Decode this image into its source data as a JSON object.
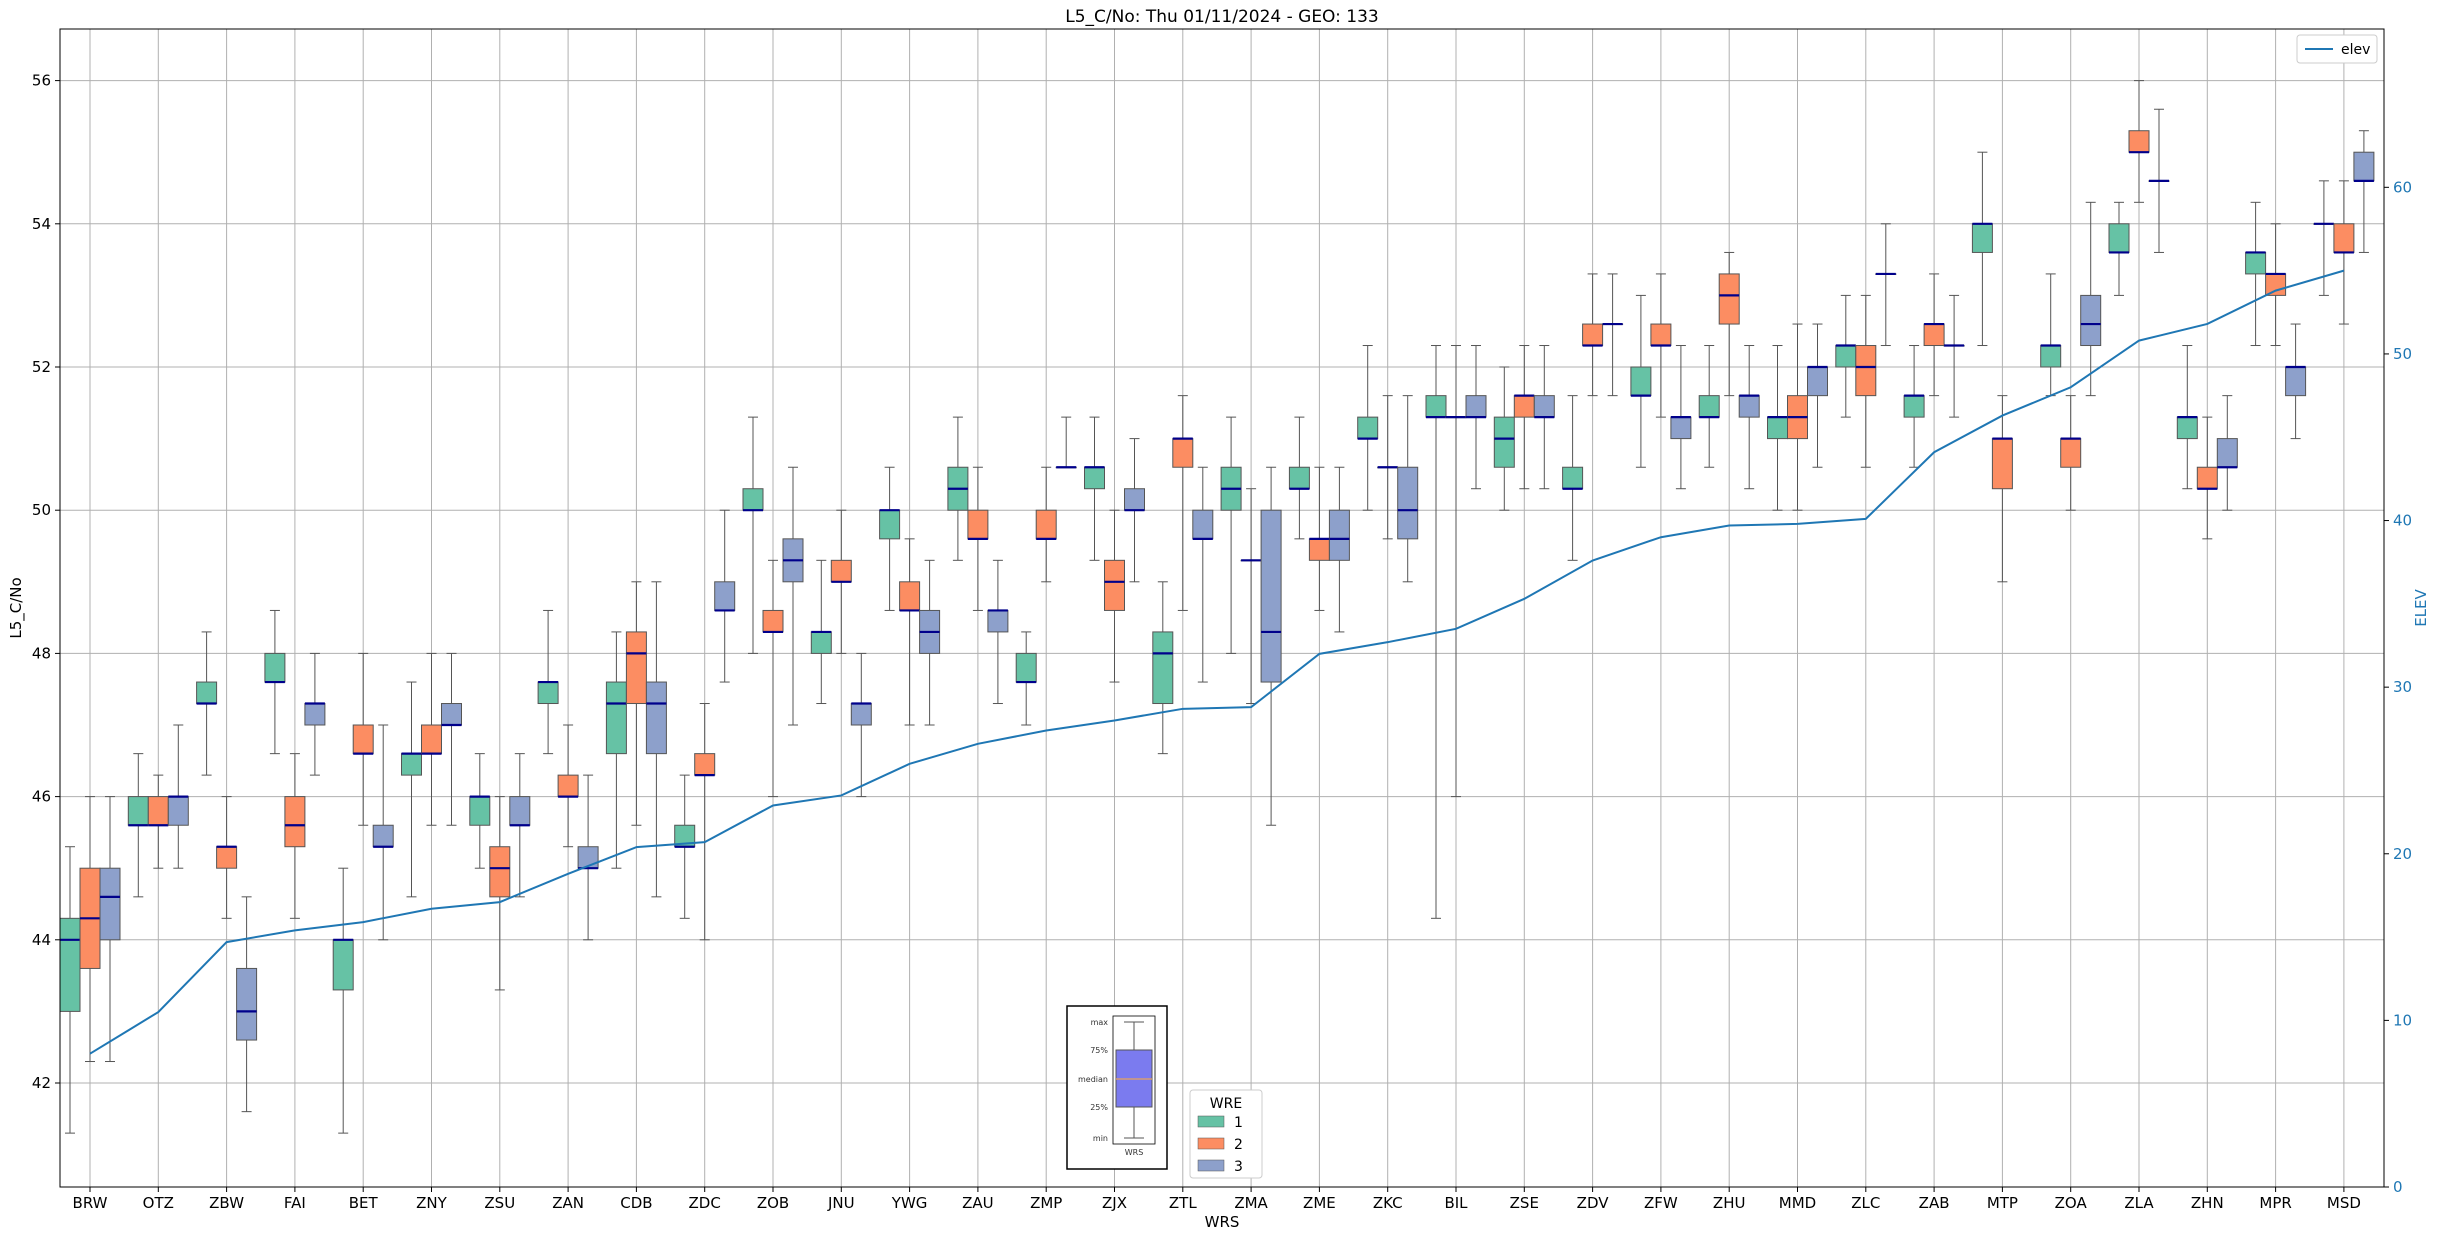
{
  "colors": {
    "wre1": "#66c2a5",
    "wre2": "#fc8d62",
    "wre3": "#8da0cb",
    "median": "#00008b",
    "elev": "#1f77b4",
    "grid": "#b0b0b0",
    "inset_box": "#7b7bef"
  },
  "chart_data": {
    "type": "box",
    "title": "L5_C/No: Thu 01/11/2024 - GEO: 133",
    "xlabel": "WRS",
    "ylabel": "L5_C/No",
    "y2label": "ELEV",
    "ylim": [
      40.6,
      56.8
    ],
    "y2lim": [
      0,
      65
    ],
    "yticks": [
      "42",
      "44",
      "46",
      "48",
      "50",
      "52",
      "54",
      "56"
    ],
    "y2ticks": [
      "0",
      "10",
      "20",
      "30",
      "40",
      "50",
      "60"
    ],
    "grid": true,
    "categories": [
      "BRW",
      "OTZ",
      "ZBW",
      "FAI",
      "BET",
      "ZNY",
      "ZSU",
      "ZAN",
      "CDB",
      "ZDC",
      "ZOB",
      "JNU",
      "YWG",
      "ZAU",
      "ZMP",
      "ZJX",
      "ZTL",
      "ZMA",
      "ZME",
      "ZKC",
      "BIL",
      "ZSE",
      "ZDV",
      "ZFW",
      "ZHU",
      "MMD",
      "ZLC",
      "ZAB",
      "MTP",
      "ZOA",
      "ZLA",
      "ZHN",
      "MPR",
      "MSD"
    ],
    "box_legend": {
      "title": "WRE",
      "entries": [
        "1",
        "2",
        "3"
      ],
      "placement": "bottom-center"
    },
    "line_legend": {
      "entries": [
        "elev"
      ],
      "placement": "top-right"
    },
    "inset_legend": {
      "labels": [
        "max",
        "75%",
        "median",
        "25%",
        "min"
      ],
      "xlabel": "WRS"
    },
    "series": [
      {
        "name": "1",
        "boxes": [
          {
            "cat": "BRW",
            "min": 41.3,
            "q1": 43.0,
            "med": 44.0,
            "q3": 44.3,
            "max": 45.3
          },
          {
            "cat": "OTZ",
            "min": 44.6,
            "q1": 45.6,
            "med": 45.6,
            "q3": 46.0,
            "max": 46.6
          },
          {
            "cat": "ZBW",
            "min": 46.3,
            "q1": 47.3,
            "med": 47.3,
            "q3": 47.6,
            "max": 48.3
          },
          {
            "cat": "FAI",
            "min": 46.6,
            "q1": 47.6,
            "med": 47.6,
            "q3": 48.0,
            "max": 48.6
          },
          {
            "cat": "BET",
            "min": 41.3,
            "q1": 43.3,
            "med": 44.0,
            "q3": 44.0,
            "max": 45.0
          },
          {
            "cat": "ZNY",
            "min": 44.6,
            "q1": 46.3,
            "med": 46.6,
            "q3": 46.6,
            "max": 47.6
          },
          {
            "cat": "ZSU",
            "min": 45.0,
            "q1": 45.6,
            "med": 46.0,
            "q3": 46.0,
            "max": 46.6
          },
          {
            "cat": "ZAN",
            "min": 46.6,
            "q1": 47.3,
            "med": 47.6,
            "q3": 47.6,
            "max": 48.6
          },
          {
            "cat": "CDB",
            "min": 45.0,
            "q1": 46.6,
            "med": 47.3,
            "q3": 47.6,
            "max": 48.3
          },
          {
            "cat": "ZDC",
            "min": 44.3,
            "q1": 45.3,
            "med": 45.3,
            "q3": 45.6,
            "max": 46.3
          },
          {
            "cat": "ZOB",
            "min": 48.0,
            "q1": 50.0,
            "med": 50.0,
            "q3": 50.3,
            "max": 51.3
          },
          {
            "cat": "JNU",
            "min": 47.3,
            "q1": 48.0,
            "med": 48.3,
            "q3": 48.3,
            "max": 49.3
          },
          {
            "cat": "YWG",
            "min": 48.6,
            "q1": 49.6,
            "med": 50.0,
            "q3": 50.0,
            "max": 50.6
          },
          {
            "cat": "ZAU",
            "min": 49.3,
            "q1": 50.0,
            "med": 50.3,
            "q3": 50.6,
            "max": 51.3
          },
          {
            "cat": "ZMP",
            "min": 47.0,
            "q1": 47.6,
            "med": 47.6,
            "q3": 48.0,
            "max": 48.3
          },
          {
            "cat": "ZJX",
            "min": 49.3,
            "q1": 50.3,
            "med": 50.6,
            "q3": 50.6,
            "max": 51.3
          },
          {
            "cat": "ZTL",
            "min": 46.6,
            "q1": 47.3,
            "med": 48.0,
            "q3": 48.3,
            "max": 49.0
          },
          {
            "cat": "ZMA",
            "min": 48.0,
            "q1": 50.0,
            "med": 50.3,
            "q3": 50.6,
            "max": 51.3
          },
          {
            "cat": "ZME",
            "min": 49.6,
            "q1": 50.3,
            "med": 50.3,
            "q3": 50.6,
            "max": 51.3
          },
          {
            "cat": "ZKC",
            "min": 50.0,
            "q1": 51.0,
            "med": 51.0,
            "q3": 51.3,
            "max": 52.3
          },
          {
            "cat": "BIL",
            "min": 44.3,
            "q1": 51.3,
            "med": 51.3,
            "q3": 51.6,
            "max": 52.3
          },
          {
            "cat": "ZSE",
            "min": 50.0,
            "q1": 50.6,
            "med": 51.0,
            "q3": 51.3,
            "max": 52.0
          },
          {
            "cat": "ZDV",
            "min": 49.3,
            "q1": 50.3,
            "med": 50.3,
            "q3": 50.6,
            "max": 51.6
          },
          {
            "cat": "ZFW",
            "min": 50.6,
            "q1": 51.6,
            "med": 51.6,
            "q3": 52.0,
            "max": 53.0
          },
          {
            "cat": "ZHU",
            "min": 50.6,
            "q1": 51.3,
            "med": 51.3,
            "q3": 51.6,
            "max": 52.3
          },
          {
            "cat": "MMD",
            "min": 50.0,
            "q1": 51.0,
            "med": 51.3,
            "q3": 51.3,
            "max": 52.3
          },
          {
            "cat": "ZLC",
            "min": 51.3,
            "q1": 52.0,
            "med": 52.3,
            "q3": 52.3,
            "max": 53.0
          },
          {
            "cat": "ZAB",
            "min": 50.6,
            "q1": 51.3,
            "med": 51.6,
            "q3": 51.6,
            "max": 52.3
          },
          {
            "cat": "MTP",
            "min": 52.3,
            "q1": 53.6,
            "med": 54.0,
            "q3": 54.0,
            "max": 55.0
          },
          {
            "cat": "ZOA",
            "min": 51.6,
            "q1": 52.0,
            "med": 52.3,
            "q3": 52.3,
            "max": 53.3
          },
          {
            "cat": "ZLA",
            "min": 53.0,
            "q1": 53.6,
            "med": 53.6,
            "q3": 54.0,
            "max": 54.3
          },
          {
            "cat": "ZHN",
            "min": 50.3,
            "q1": 51.0,
            "med": 51.3,
            "q3": 51.3,
            "max": 52.3
          },
          {
            "cat": "MPR",
            "min": 52.3,
            "q1": 53.3,
            "med": 53.6,
            "q3": 53.6,
            "max": 54.3
          },
          {
            "cat": "MSD",
            "min": 53.0,
            "q1": 54.0,
            "med": 54.0,
            "q3": 54.0,
            "max": 54.6
          }
        ]
      },
      {
        "name": "2",
        "boxes": [
          {
            "cat": "BRW",
            "min": 42.3,
            "q1": 43.6,
            "med": 44.3,
            "q3": 45.0,
            "max": 46.0
          },
          {
            "cat": "OTZ",
            "min": 45.0,
            "q1": 45.6,
            "med": 45.6,
            "q3": 46.0,
            "max": 46.3
          },
          {
            "cat": "ZBW",
            "min": 44.3,
            "q1": 45.0,
            "med": 45.3,
            "q3": 45.3,
            "max": 46.0
          },
          {
            "cat": "FAI",
            "min": 44.3,
            "q1": 45.3,
            "med": 45.6,
            "q3": 46.0,
            "max": 46.6
          },
          {
            "cat": "BET",
            "min": 45.6,
            "q1": 46.6,
            "med": 46.6,
            "q3": 47.0,
            "max": 48.0
          },
          {
            "cat": "ZNY",
            "min": 45.6,
            "q1": 46.6,
            "med": 46.6,
            "q3": 47.0,
            "max": 48.0
          },
          {
            "cat": "ZSU",
            "min": 43.3,
            "q1": 44.6,
            "med": 45.0,
            "q3": 45.3,
            "max": 46.0
          },
          {
            "cat": "ZAN",
            "min": 45.3,
            "q1": 46.0,
            "med": 46.0,
            "q3": 46.3,
            "max": 47.0
          },
          {
            "cat": "CDB",
            "min": 45.6,
            "q1": 47.3,
            "med": 48.0,
            "q3": 48.3,
            "max": 49.0
          },
          {
            "cat": "ZDC",
            "min": 44.0,
            "q1": 46.3,
            "med": 46.3,
            "q3": 46.6,
            "max": 47.3
          },
          {
            "cat": "ZOB",
            "min": 46.0,
            "q1": 48.3,
            "med": 48.3,
            "q3": 48.6,
            "max": 49.3
          },
          {
            "cat": "JNU",
            "min": 48.0,
            "q1": 49.0,
            "med": 49.0,
            "q3": 49.3,
            "max": 50.0
          },
          {
            "cat": "YWG",
            "min": 47.0,
            "q1": 48.6,
            "med": 48.6,
            "q3": 49.0,
            "max": 49.6
          },
          {
            "cat": "ZAU",
            "min": 48.6,
            "q1": 49.6,
            "med": 49.6,
            "q3": 50.0,
            "max": 50.6
          },
          {
            "cat": "ZMP",
            "min": 49.0,
            "q1": 49.6,
            "med": 49.6,
            "q3": 50.0,
            "max": 50.6
          },
          {
            "cat": "ZJX",
            "min": 47.6,
            "q1": 48.6,
            "med": 49.0,
            "q3": 49.3,
            "max": 50.0
          },
          {
            "cat": "ZTL",
            "min": 48.6,
            "q1": 50.6,
            "med": 51.0,
            "q3": 51.0,
            "max": 51.6
          },
          {
            "cat": "ZMA",
            "min": 47.3,
            "q1": 49.3,
            "med": 49.3,
            "q3": 49.3,
            "max": 50.3
          },
          {
            "cat": "ZME",
            "min": 48.6,
            "q1": 49.3,
            "med": 49.6,
            "q3": 49.6,
            "max": 50.6
          },
          {
            "cat": "ZKC",
            "min": 49.6,
            "q1": 50.6,
            "med": 50.6,
            "q3": 50.6,
            "max": 51.6
          },
          {
            "cat": "BIL",
            "min": 46.0,
            "q1": 51.3,
            "med": 51.3,
            "q3": 51.3,
            "max": 52.3
          },
          {
            "cat": "ZSE",
            "min": 50.3,
            "q1": 51.3,
            "med": 51.6,
            "q3": 51.6,
            "max": 52.3
          },
          {
            "cat": "ZDV",
            "min": 51.6,
            "q1": 52.3,
            "med": 52.3,
            "q3": 52.6,
            "max": 53.3
          },
          {
            "cat": "ZFW",
            "min": 51.3,
            "q1": 52.3,
            "med": 52.3,
            "q3": 52.6,
            "max": 53.3
          },
          {
            "cat": "ZHU",
            "min": 51.6,
            "q1": 52.6,
            "med": 53.0,
            "q3": 53.3,
            "max": 53.6
          },
          {
            "cat": "MMD",
            "min": 50.0,
            "q1": 51.0,
            "med": 51.3,
            "q3": 51.6,
            "max": 52.6
          },
          {
            "cat": "ZLC",
            "min": 50.6,
            "q1": 51.6,
            "med": 52.0,
            "q3": 52.3,
            "max": 53.0
          },
          {
            "cat": "ZAB",
            "min": 51.6,
            "q1": 52.3,
            "med": 52.6,
            "q3": 52.6,
            "max": 53.3
          },
          {
            "cat": "MTP",
            "min": 49.0,
            "q1": 50.3,
            "med": 51.0,
            "q3": 51.0,
            "max": 51.6
          },
          {
            "cat": "ZOA",
            "min": 50.0,
            "q1": 50.6,
            "med": 51.0,
            "q3": 51.0,
            "max": 51.6
          },
          {
            "cat": "ZLA",
            "min": 54.3,
            "q1": 55.0,
            "med": 55.0,
            "q3": 55.3,
            "max": 56.0
          },
          {
            "cat": "ZHN",
            "min": 49.6,
            "q1": 50.3,
            "med": 50.3,
            "q3": 50.6,
            "max": 51.3
          },
          {
            "cat": "MPR",
            "min": 52.3,
            "q1": 53.0,
            "med": 53.3,
            "q3": 53.3,
            "max": 54.0
          },
          {
            "cat": "MSD",
            "min": 52.6,
            "q1": 53.6,
            "med": 53.6,
            "q3": 54.0,
            "max": 54.6
          }
        ]
      },
      {
        "name": "3",
        "boxes": [
          {
            "cat": "BRW",
            "min": 42.3,
            "q1": 44.0,
            "med": 44.6,
            "q3": 45.0,
            "max": 46.0
          },
          {
            "cat": "OTZ",
            "min": 45.0,
            "q1": 45.6,
            "med": 46.0,
            "q3": 46.0,
            "max": 47.0
          },
          {
            "cat": "ZBW",
            "min": 41.6,
            "q1": 42.6,
            "med": 43.0,
            "q3": 43.6,
            "max": 44.6
          },
          {
            "cat": "FAI",
            "min": 46.3,
            "q1": 47.0,
            "med": 47.3,
            "q3": 47.3,
            "max": 48.0
          },
          {
            "cat": "BET",
            "min": 44.0,
            "q1": 45.3,
            "med": 45.3,
            "q3": 45.6,
            "max": 47.0
          },
          {
            "cat": "ZNY",
            "min": 45.6,
            "q1": 47.0,
            "med": 47.0,
            "q3": 47.3,
            "max": 48.0
          },
          {
            "cat": "ZSU",
            "min": 44.6,
            "q1": 45.6,
            "med": 45.6,
            "q3": 46.0,
            "max": 46.6
          },
          {
            "cat": "ZAN",
            "min": 44.0,
            "q1": 45.0,
            "med": 45.0,
            "q3": 45.3,
            "max": 46.3
          },
          {
            "cat": "CDB",
            "min": 44.6,
            "q1": 46.6,
            "med": 47.3,
            "q3": 47.6,
            "max": 49.0
          },
          {
            "cat": "ZDC",
            "min": 47.6,
            "q1": 48.6,
            "med": 48.6,
            "q3": 49.0,
            "max": 50.0
          },
          {
            "cat": "ZOB",
            "min": 47.0,
            "q1": 49.0,
            "med": 49.3,
            "q3": 49.6,
            "max": 50.6
          },
          {
            "cat": "JNU",
            "min": 46.0,
            "q1": 47.0,
            "med": 47.3,
            "q3": 47.3,
            "max": 48.0
          },
          {
            "cat": "YWG",
            "min": 47.0,
            "q1": 48.0,
            "med": 48.3,
            "q3": 48.6,
            "max": 49.3
          },
          {
            "cat": "ZAU",
            "min": 47.3,
            "q1": 48.3,
            "med": 48.6,
            "q3": 48.6,
            "max": 49.3
          },
          {
            "cat": "ZMP",
            "min": 50.6,
            "q1": 50.6,
            "med": 50.6,
            "q3": 50.6,
            "max": 51.3
          },
          {
            "cat": "ZJX",
            "min": 49.0,
            "q1": 50.0,
            "med": 50.0,
            "q3": 50.3,
            "max": 51.0
          },
          {
            "cat": "ZTL",
            "min": 47.6,
            "q1": 49.6,
            "med": 49.6,
            "q3": 50.0,
            "max": 50.6
          },
          {
            "cat": "ZMA",
            "min": 45.6,
            "q1": 47.6,
            "med": 48.3,
            "q3": 50.0,
            "max": 50.6
          },
          {
            "cat": "ZME",
            "min": 48.3,
            "q1": 49.3,
            "med": 49.6,
            "q3": 50.0,
            "max": 50.6
          },
          {
            "cat": "ZKC",
            "min": 49.0,
            "q1": 49.6,
            "med": 50.0,
            "q3": 50.6,
            "max": 51.6
          },
          {
            "cat": "BIL",
            "min": 50.3,
            "q1": 51.3,
            "med": 51.3,
            "q3": 51.6,
            "max": 52.3
          },
          {
            "cat": "ZSE",
            "min": 50.3,
            "q1": 51.3,
            "med": 51.3,
            "q3": 51.6,
            "max": 52.3
          },
          {
            "cat": "ZDV",
            "min": 51.6,
            "q1": 52.6,
            "med": 52.6,
            "q3": 52.6,
            "max": 53.3
          },
          {
            "cat": "ZFW",
            "min": 50.3,
            "q1": 51.0,
            "med": 51.3,
            "q3": 51.3,
            "max": 52.3
          },
          {
            "cat": "ZHU",
            "min": 50.3,
            "q1": 51.3,
            "med": 51.6,
            "q3": 51.6,
            "max": 52.3
          },
          {
            "cat": "MMD",
            "min": 50.6,
            "q1": 51.6,
            "med": 52.0,
            "q3": 52.0,
            "max": 52.6
          },
          {
            "cat": "ZLC",
            "min": 52.3,
            "q1": 53.3,
            "med": 53.3,
            "q3": 53.3,
            "max": 54.0
          },
          {
            "cat": "ZAB",
            "min": 51.3,
            "q1": 52.3,
            "med": 52.3,
            "q3": 52.3,
            "max": 53.0
          },
          {
            "cat": "MTP",
            "min": null,
            "q1": null,
            "med": null,
            "q3": null,
            "max": null
          },
          {
            "cat": "ZOA",
            "min": 51.6,
            "q1": 52.3,
            "med": 52.6,
            "q3": 53.0,
            "max": 54.3
          },
          {
            "cat": "ZLA",
            "min": 53.6,
            "q1": 54.6,
            "med": 54.6,
            "q3": 54.6,
            "max": 55.6
          },
          {
            "cat": "ZHN",
            "min": 50.0,
            "q1": 50.6,
            "med": 50.6,
            "q3": 51.0,
            "max": 51.6
          },
          {
            "cat": "MPR",
            "min": 51.0,
            "q1": 51.6,
            "med": 52.0,
            "q3": 52.0,
            "max": 52.6
          },
          {
            "cat": "MSD",
            "min": 53.6,
            "q1": 54.6,
            "med": 54.6,
            "q3": 55.0,
            "max": 55.3
          }
        ]
      }
    ],
    "elev_line": {
      "name": "elev",
      "values": [
        8.0,
        10.5,
        14.7,
        15.4,
        15.9,
        16.7,
        17.1,
        18.8,
        20.4,
        20.7,
        22.9,
        23.5,
        25.4,
        26.6,
        27.4,
        28.0,
        28.7,
        28.8,
        32.0,
        32.7,
        33.5,
        35.3,
        37.6,
        39.0,
        39.7,
        39.8,
        40.1,
        44.1,
        46.3,
        48.0,
        50.8,
        51.8,
        53.8,
        55.0
      ]
    }
  }
}
